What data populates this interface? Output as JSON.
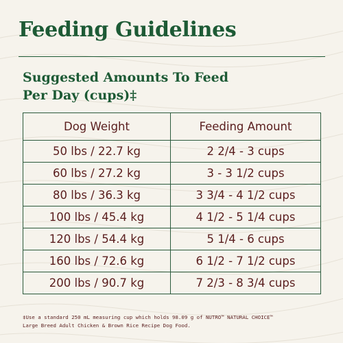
{
  "title": "Feeding Guidelines",
  "subtitle": {
    "line1": "Suggested Amounts To Feed",
    "line2": "Per Day (cups)‡"
  },
  "table": {
    "headers": [
      "Dog Weight",
      "Feeding Amount"
    ],
    "rows": [
      [
        "50 lbs / 22.7 kg",
        "2 2/4 - 3 cups"
      ],
      [
        "60 lbs / 27.2 kg",
        "3 - 3 1/2 cups"
      ],
      [
        "80 lbs / 36.3 kg",
        "3 3/4 - 4 1/2 cups"
      ],
      [
        "100 lbs / 45.4 kg",
        "4 1/2 - 5 1/4 cups"
      ],
      [
        "120 lbs / 54.4 kg",
        "5 1/4 - 6 cups"
      ],
      [
        "160 lbs / 72.6 kg",
        "6 1/2 - 7 1/2 cups"
      ],
      [
        "200 lbs / 90.7 kg",
        "7 2/3 - 8 3/4 cups"
      ]
    ]
  },
  "footnote": {
    "line1": "‡Use a standard 250 mL measuring cup which holds 98.09 g of NUTRO™ NATURAL CHOICE™",
    "line2": "Large Breed Adult Chicken & Brown Rice Recipe Dog Food."
  },
  "colors": {
    "heading_green": "#1d5a35",
    "table_text": "#5a1e1e",
    "background": "#f6f3ec"
  }
}
